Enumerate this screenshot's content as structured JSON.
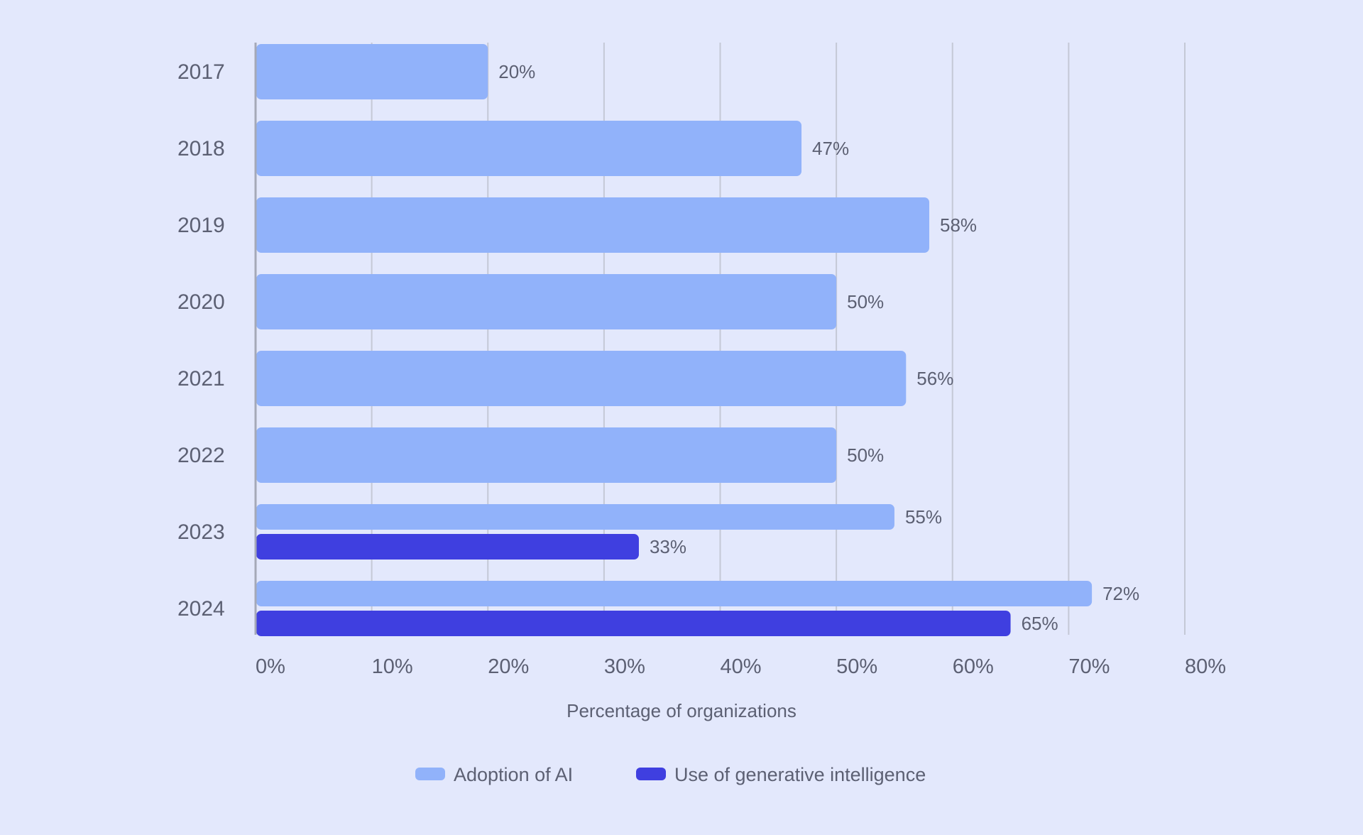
{
  "chart_data": {
    "type": "bar",
    "orientation": "horizontal",
    "categories": [
      "2017",
      "2018",
      "2019",
      "2020",
      "2021",
      "2022",
      "2023",
      "2024"
    ],
    "series": [
      {
        "name": "Adoption of AI",
        "color": "#91b2fa",
        "values": [
          20,
          47,
          58,
          50,
          56,
          50,
          55,
          72
        ]
      },
      {
        "name": "Use of generative intelligence",
        "color": "#3f3fe0",
        "values": [
          null,
          null,
          null,
          null,
          null,
          null,
          33,
          65
        ]
      }
    ],
    "value_labels": {
      "Adoption of AI": [
        "20%",
        "47%",
        "58%",
        "50%",
        "56%",
        "50%",
        "55%",
        "72%"
      ],
      "Use of generative intelligence": [
        null,
        null,
        null,
        null,
        null,
        null,
        "33%",
        "65%"
      ]
    },
    "xlabel": "Percentage of organizations",
    "ylabel": "",
    "xlim": [
      0,
      80
    ],
    "xticks": [
      "0%",
      "10%",
      "20%",
      "30%",
      "40%",
      "50%",
      "60%",
      "70%",
      "80%"
    ],
    "grid": "vertical",
    "legend": "bottom-center",
    "colors": {
      "background": "#e3e8fc",
      "grid": "#c4c8d6",
      "axis": "#a5a9b7",
      "text": "#5c6073"
    }
  }
}
